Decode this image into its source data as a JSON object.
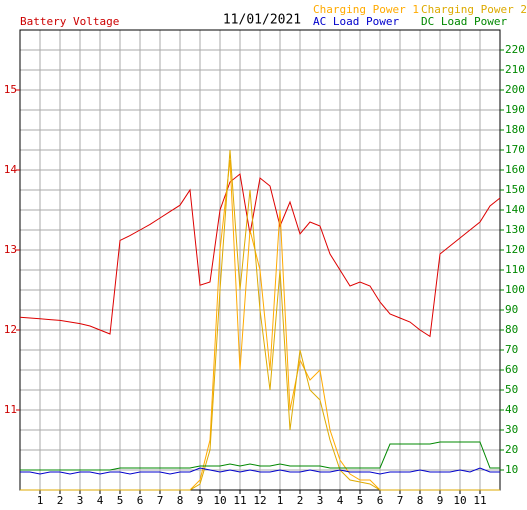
{
  "chart_data": {
    "type": "line",
    "title": "11/01/2021",
    "ylabel": "Battery Voltage",
    "x": [
      0,
      0.5,
      1,
      1.5,
      2,
      2.5,
      3,
      3.5,
      4,
      4.5,
      5,
      5.5,
      6,
      6.5,
      7,
      7.5,
      8,
      8.5,
      9,
      9.5,
      10,
      10.5,
      11,
      11.5,
      12,
      12.5,
      13,
      13.5,
      14,
      14.5,
      15,
      15.5,
      16,
      16.5,
      17,
      17.5,
      18,
      18.5,
      19,
      19.5,
      20,
      20.5,
      21,
      21.5,
      22,
      22.5,
      23,
      23.5,
      24
    ],
    "xlim": [
      0,
      24
    ],
    "xticks": [
      {
        "value": 1,
        "label": "1"
      },
      {
        "value": 2,
        "label": "2"
      },
      {
        "value": 3,
        "label": "3"
      },
      {
        "value": 4,
        "label": "4"
      },
      {
        "value": 5,
        "label": "5"
      },
      {
        "value": 6,
        "label": "6"
      },
      {
        "value": 7,
        "label": "7"
      },
      {
        "value": 8,
        "label": "8"
      },
      {
        "value": 9,
        "label": "9"
      },
      {
        "value": 10,
        "label": "10"
      },
      {
        "value": 11,
        "label": "11"
      },
      {
        "value": 12,
        "label": "12"
      },
      {
        "value": 13,
        "label": "1"
      },
      {
        "value": 14,
        "label": "2"
      },
      {
        "value": 15,
        "label": "3"
      },
      {
        "value": 16,
        "label": "4"
      },
      {
        "value": 17,
        "label": "5"
      },
      {
        "value": 18,
        "label": "6"
      },
      {
        "value": 19,
        "label": "7"
      },
      {
        "value": 20,
        "label": "8"
      },
      {
        "value": 21,
        "label": "9"
      },
      {
        "value": 22,
        "label": "10"
      },
      {
        "value": 23,
        "label": "11"
      }
    ],
    "ylim": [
      10,
      15.75
    ],
    "yticks": [
      11,
      12,
      13,
      14,
      15
    ],
    "ytick_color": "#cc0000",
    "y2lim": [
      0,
      230
    ],
    "y2ticks": [
      10,
      20,
      30,
      40,
      50,
      60,
      70,
      80,
      90,
      100,
      110,
      120,
      130,
      140,
      150,
      160,
      170,
      180,
      190,
      200,
      210,
      220
    ],
    "y2tick_color": "#008800",
    "grid": true,
    "series": [
      {
        "name": "Battery Voltage",
        "color": "#dd0000",
        "axis": "y",
        "values": [
          12.16,
          12.15,
          12.14,
          12.13,
          12.12,
          12.1,
          12.08,
          12.05,
          12.0,
          11.95,
          13.12,
          13.18,
          13.25,
          13.32,
          13.4,
          13.48,
          13.56,
          13.75,
          12.56,
          12.6,
          13.5,
          13.85,
          13.95,
          13.2,
          13.9,
          13.8,
          13.3,
          13.6,
          13.2,
          13.35,
          13.3,
          12.95,
          12.75,
          12.55,
          12.6,
          12.55,
          12.35,
          12.2,
          12.15,
          12.1,
          12.0,
          11.92,
          12.95,
          13.05,
          13.15,
          13.25,
          13.35,
          13.55,
          13.65
        ]
      },
      {
        "name": "Charging Power 1",
        "color": "#ffaa00",
        "axis": "y2",
        "values": [
          0,
          0,
          0,
          0,
          0,
          0,
          0,
          0,
          0,
          0,
          0,
          0,
          0,
          0,
          0,
          0,
          0,
          0,
          5,
          25,
          120,
          165,
          60,
          130,
          110,
          60,
          140,
          40,
          65,
          55,
          60,
          30,
          15,
          8,
          5,
          5,
          0,
          0,
          0,
          0,
          0,
          0,
          0,
          0,
          0,
          0,
          0,
          0,
          0
        ]
      },
      {
        "name": "Charging Power 2",
        "color": "#ddaa00",
        "axis": "y2",
        "values": [
          0,
          0,
          0,
          0,
          0,
          0,
          0,
          0,
          0,
          0,
          0,
          0,
          0,
          0,
          0,
          0,
          0,
          0,
          3,
          20,
          100,
          170,
          100,
          150,
          90,
          50,
          110,
          30,
          70,
          50,
          45,
          25,
          10,
          5,
          4,
          3,
          0,
          0,
          0,
          0,
          0,
          0,
          0,
          0,
          0,
          0,
          0,
          0,
          0
        ]
      },
      {
        "name": "AC Load Power",
        "color": "#0000cc",
        "axis": "y2",
        "values": [
          9,
          9,
          8,
          9,
          9,
          8,
          9,
          9,
          8,
          9,
          9,
          8,
          9,
          9,
          9,
          8,
          9,
          9,
          11,
          10,
          9,
          10,
          9,
          10,
          9,
          9,
          10,
          9,
          9,
          10,
          9,
          9,
          10,
          9,
          9,
          9,
          8,
          9,
          9,
          9,
          10,
          9,
          9,
          9,
          10,
          9,
          11,
          9,
          9
        ]
      },
      {
        "name": "DC Load Power",
        "color": "#008800",
        "axis": "y2",
        "values": [
          10,
          10,
          10,
          10,
          10,
          10,
          10,
          10,
          10,
          10,
          11,
          11,
          11,
          11,
          11,
          11,
          11,
          11,
          12,
          12,
          12,
          13,
          12,
          13,
          12,
          12,
          13,
          12,
          12,
          12,
          12,
          11,
          11,
          11,
          11,
          11,
          11,
          23,
          23,
          23,
          23,
          23,
          24,
          24,
          24,
          24,
          24,
          11,
          11
        ]
      }
    ],
    "legend": "top-right"
  }
}
